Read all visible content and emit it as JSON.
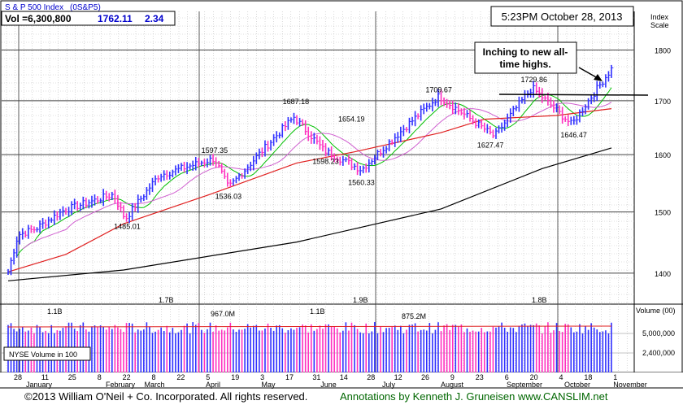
{
  "header": {
    "index_name": "S & P 500 Index",
    "ticker": "(0S&P5)",
    "vol_label": "Vol =6,300,800",
    "price": "1762.11",
    "change": "2.34",
    "timestamp": "5:23PM October 28, 2013",
    "scale_label_1": "Index",
    "scale_label_2": "Scale"
  },
  "annotation": {
    "line1": "Inching to new all-",
    "line2": "time highs."
  },
  "volume_panel": {
    "legend": "NYSE Volume in 100",
    "axis_title": "Volume (00)",
    "ticks": [
      "5,000,000",
      "2,400,000"
    ],
    "labels": [
      "1.1B",
      "1.7B",
      "967.0M",
      "1.1B",
      "1.9B",
      "875.2M",
      "1.8B"
    ]
  },
  "footer": {
    "copyright": "©2013 William O'Neil + Co. Incorporated. All rights reserved.",
    "credit": "Annotations by Kenneth J. Gruneisen www.CANSLIM.net"
  },
  "colors": {
    "up_bar": "#3030ff",
    "down_bar": "#ff30c0",
    "ma_short": "#00c000",
    "ma_mid": "#d060d0",
    "ma_50": "#e02020",
    "ma_200": "#000000",
    "accent_blue": "#0000cc"
  },
  "chart_data": {
    "type": "ohlc",
    "title": "S & P 500 Index",
    "y_axis": {
      "label": "Index Scale",
      "scale": "log",
      "ticks": [
        1400,
        1500,
        1600,
        1700,
        1800
      ],
      "range": [
        1352,
        1880
      ]
    },
    "x_axis": {
      "date_labels": [
        "28",
        "11",
        "25",
        "8",
        "22",
        "8",
        "22",
        "5",
        "19",
        "3",
        "17",
        "31",
        "14",
        "28",
        "12",
        "26",
        "9",
        "23",
        "6",
        "20",
        "4",
        "18",
        "1"
      ],
      "month_labels": [
        "January",
        "February",
        "March",
        "April",
        "May",
        "June",
        "July",
        "August",
        "September",
        "October",
        "November"
      ]
    },
    "price_points": [
      {
        "date": "2012-12-28",
        "close": 1402
      },
      {
        "date": "2013-01-02",
        "close": 1462
      },
      {
        "date": "2013-01-11",
        "close": 1472
      },
      {
        "date": "2013-01-25",
        "close": 1503
      },
      {
        "date": "2013-02-08",
        "close": 1518
      },
      {
        "date": "2013-02-19",
        "close": 1530
      },
      {
        "date": "2013-02-25",
        "close": 1488
      },
      {
        "date": "2013-03-14",
        "close": 1563
      },
      {
        "date": "2013-04-11",
        "close": 1593
      },
      {
        "date": "2013-04-18",
        "close": 1541
      },
      {
        "date": "2013-05-21",
        "close": 1669
      },
      {
        "date": "2013-06-05",
        "close": 1608
      },
      {
        "date": "2013-06-24",
        "close": 1573
      },
      {
        "date": "2013-08-02",
        "close": 1709
      },
      {
        "date": "2013-08-30",
        "close": 1633
      },
      {
        "date": "2013-09-18",
        "close": 1725
      },
      {
        "date": "2013-10-08",
        "close": 1655
      },
      {
        "date": "2013-10-28",
        "close": 1762
      }
    ],
    "labeled_points": [
      {
        "label": "1485.01",
        "date": "2013-02-26",
        "value": 1485.01
      },
      {
        "label": "1597.35",
        "date": "2013-04-11",
        "value": 1597.35
      },
      {
        "label": "1536.03",
        "date": "2013-04-18",
        "value": 1536.03
      },
      {
        "label": "1687.18",
        "date": "2013-05-22",
        "value": 1687.18
      },
      {
        "label": "1598.23",
        "date": "2013-06-06",
        "value": 1598.23
      },
      {
        "label": "1654.19",
        "date": "2013-06-19",
        "value": 1654.19
      },
      {
        "label": "1560.33",
        "date": "2013-06-24",
        "value": 1560.33
      },
      {
        "label": "1709.67",
        "date": "2013-08-02",
        "value": 1709.67
      },
      {
        "label": "1627.47",
        "date": "2013-08-28",
        "value": 1627.47
      },
      {
        "label": "1729.86",
        "date": "2013-09-19",
        "value": 1729.86
      },
      {
        "label": "1646.47",
        "date": "2013-10-09",
        "value": 1646.47
      }
    ],
    "moving_averages": [
      {
        "name": "200-day",
        "points": [
          [
            0,
            1388
          ],
          [
            40,
            1405
          ],
          [
            100,
            1450
          ],
          [
            150,
            1505
          ],
          [
            185,
            1575
          ],
          [
            209,
            1612
          ]
        ]
      },
      {
        "name": "50-day",
        "points": [
          [
            0,
            1402
          ],
          [
            20,
            1430
          ],
          [
            40,
            1480
          ],
          [
            70,
            1530
          ],
          [
            100,
            1585
          ],
          [
            120,
            1605
          ],
          [
            150,
            1640
          ],
          [
            165,
            1665
          ],
          [
            190,
            1672
          ],
          [
            209,
            1685
          ]
        ]
      }
    ],
    "volume_bars": 210,
    "resistance_line_value": 1720,
    "grid": true
  }
}
